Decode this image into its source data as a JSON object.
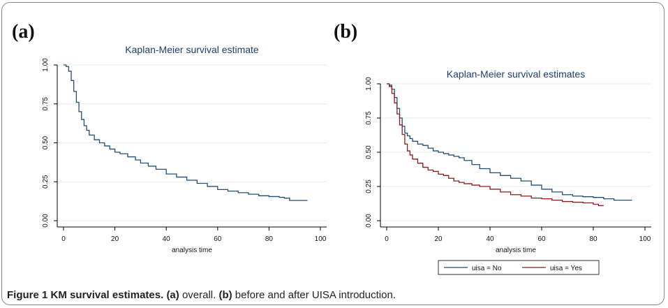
{
  "panel_a_label": "(a)",
  "panel_b_label": "(b)",
  "caption": {
    "fig": "Figure 1 KM survival estimates.",
    "a_tag": "(a)",
    "a_text": " overall. ",
    "b_tag": "(b)",
    "b_text": " before and after UISA introduction."
  },
  "colors": {
    "no": "#1f4e79",
    "yes": "#8b1a1a"
  },
  "chart_data": [
    {
      "type": "line",
      "title": "Kaplan-Meier survival estimate",
      "xlabel": "analysis time",
      "ylabel": "",
      "xlim": [
        0,
        100
      ],
      "ylim": [
        0,
        1
      ],
      "xticks": [
        "0",
        "20",
        "40",
        "60",
        "80",
        "100"
      ],
      "yticks": [
        "0.00",
        "0.25",
        "0.50",
        "0.75",
        "1.00"
      ],
      "grid": true,
      "series": [
        {
          "x": [
            0,
            1,
            2,
            3,
            4,
            5,
            6,
            7,
            8,
            9,
            10,
            12,
            14,
            16,
            18,
            20,
            22,
            25,
            28,
            30,
            33,
            36,
            40,
            44,
            48,
            52,
            56,
            60,
            64,
            68,
            72,
            76,
            80,
            84,
            86,
            88,
            90,
            95
          ],
          "y": [
            1.0,
            0.99,
            0.96,
            0.9,
            0.83,
            0.76,
            0.7,
            0.65,
            0.61,
            0.58,
            0.55,
            0.52,
            0.5,
            0.48,
            0.46,
            0.44,
            0.43,
            0.41,
            0.39,
            0.37,
            0.35,
            0.33,
            0.3,
            0.28,
            0.26,
            0.24,
            0.22,
            0.2,
            0.19,
            0.18,
            0.17,
            0.16,
            0.155,
            0.15,
            0.145,
            0.13,
            0.13,
            0.13
          ]
        }
      ]
    },
    {
      "type": "line",
      "title": "Kaplan-Meier survival estimates",
      "xlabel": "analysis time",
      "ylabel": "",
      "xlim": [
        0,
        100
      ],
      "ylim": [
        0,
        1
      ],
      "xticks": [
        "0",
        "20",
        "40",
        "60",
        "80",
        "100"
      ],
      "yticks": [
        "0.00",
        "0.25",
        "0.50",
        "0.75",
        "1.00"
      ],
      "grid": true,
      "legend": "bottom",
      "series": [
        {
          "name": "uisa = No",
          "x": [
            0,
            1,
            2,
            3,
            4,
            5,
            6,
            7,
            8,
            9,
            10,
            12,
            14,
            16,
            18,
            20,
            22,
            24,
            26,
            28,
            30,
            33,
            36,
            40,
            44,
            48,
            52,
            56,
            60,
            64,
            68,
            72,
            76,
            80,
            84,
            88,
            90,
            95
          ],
          "y": [
            1.0,
            0.99,
            0.96,
            0.9,
            0.82,
            0.75,
            0.69,
            0.64,
            0.62,
            0.6,
            0.58,
            0.56,
            0.55,
            0.53,
            0.51,
            0.5,
            0.49,
            0.48,
            0.47,
            0.46,
            0.44,
            0.41,
            0.38,
            0.35,
            0.33,
            0.31,
            0.29,
            0.26,
            0.23,
            0.21,
            0.19,
            0.18,
            0.175,
            0.17,
            0.16,
            0.15,
            0.15,
            0.15
          ]
        },
        {
          "name": "uisa = Yes",
          "x": [
            0,
            1,
            2,
            3,
            4,
            5,
            6,
            7,
            8,
            9,
            10,
            12,
            14,
            16,
            18,
            20,
            22,
            24,
            26,
            28,
            30,
            33,
            36,
            40,
            44,
            48,
            52,
            56,
            60,
            64,
            68,
            72,
            76,
            80,
            82,
            84
          ],
          "y": [
            1.0,
            0.98,
            0.93,
            0.86,
            0.78,
            0.7,
            0.63,
            0.56,
            0.51,
            0.48,
            0.45,
            0.42,
            0.39,
            0.37,
            0.36,
            0.34,
            0.33,
            0.31,
            0.29,
            0.28,
            0.27,
            0.26,
            0.25,
            0.23,
            0.21,
            0.19,
            0.18,
            0.165,
            0.16,
            0.15,
            0.14,
            0.135,
            0.13,
            0.12,
            0.11,
            0.11
          ]
        }
      ]
    }
  ]
}
